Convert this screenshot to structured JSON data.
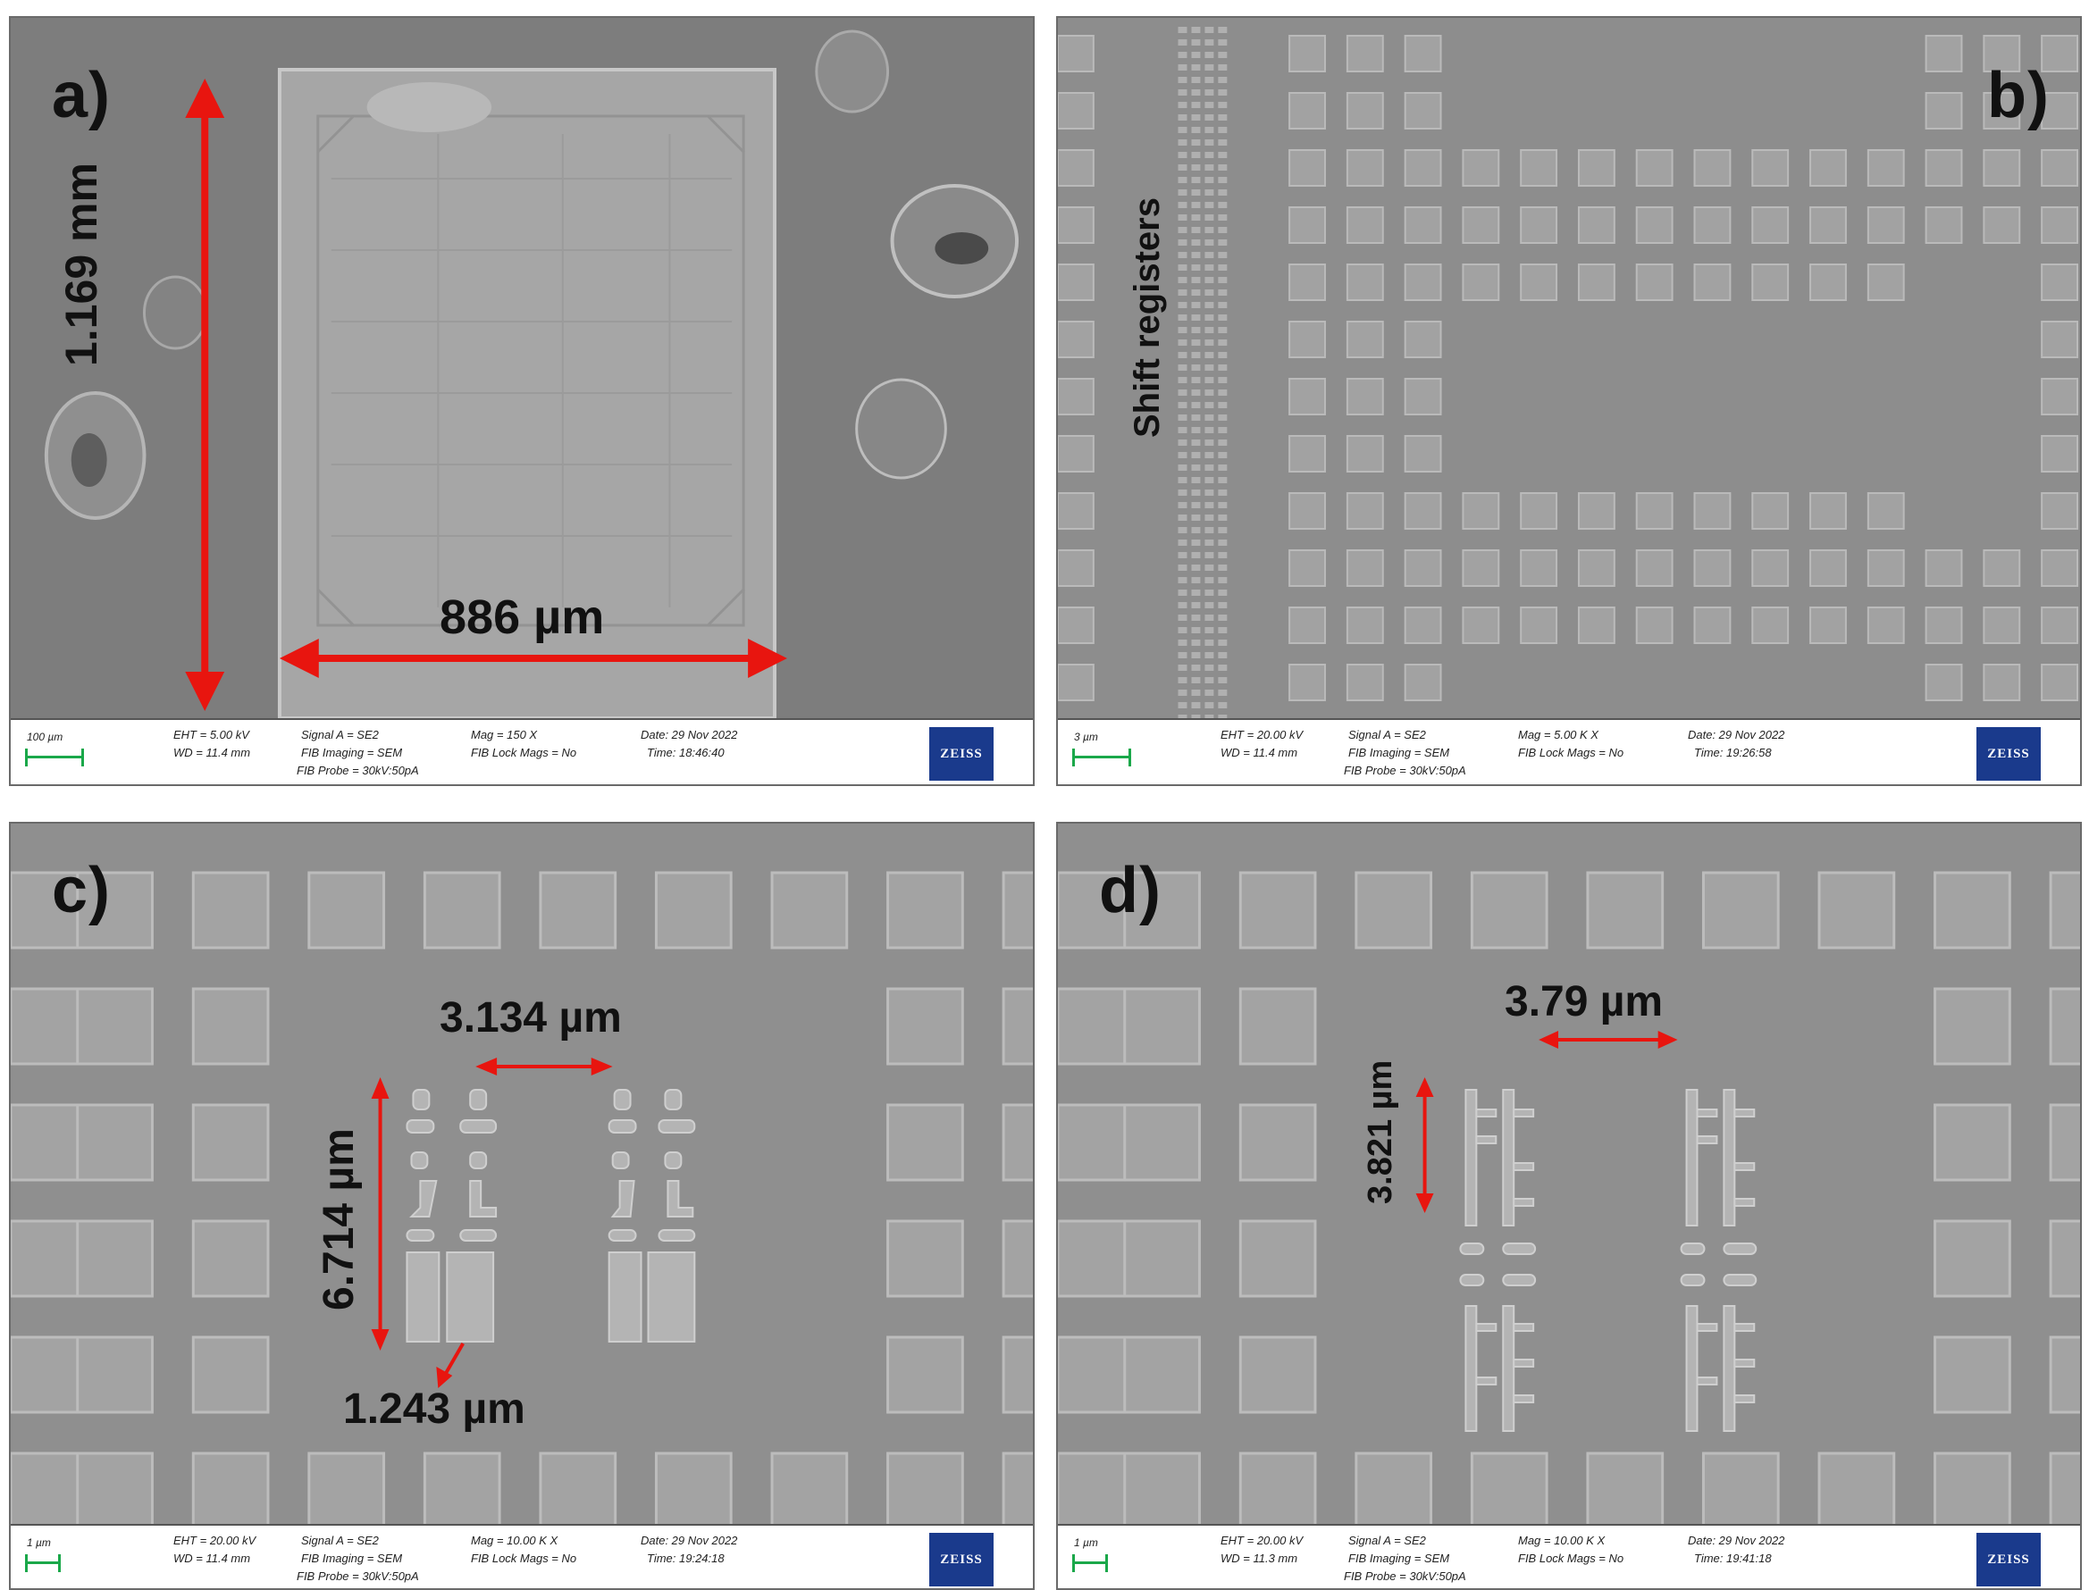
{
  "panels": [
    {
      "id": "a",
      "label": "a)",
      "measurements": [
        "1.169 mm",
        "886 µm"
      ],
      "info": {
        "scale": "100 µm",
        "eht": "EHT =  5.00 kV",
        "wd": "WD = 11.4 mm",
        "signal": "Signal A = SE2",
        "fib_imaging": "FIB Imaging = SEM",
        "fib_probe": "FIB Probe = 30kV:50pA",
        "mag": "Mag =     150 X",
        "fib_lock": "FIB Lock Mags = No",
        "date": "Date: 29 Nov 2022",
        "time": "Time: 18:46:40",
        "logo": "ZEISS"
      }
    },
    {
      "id": "b",
      "label": "b)",
      "measurements": [
        "Shift registers"
      ],
      "info": {
        "scale": "3 µm",
        "eht": "EHT = 20.00 kV",
        "wd": "WD = 11.4 mm",
        "signal": "Signal A = SE2",
        "fib_imaging": "FIB Imaging = SEM",
        "fib_probe": "FIB Probe = 30kV:50pA",
        "mag": "Mag =     5.00 K X",
        "fib_lock": "FIB Lock Mags = No",
        "date": "Date: 29 Nov 2022",
        "time": "Time: 19:26:58",
        "logo": "ZEISS"
      }
    },
    {
      "id": "c",
      "label": "c)",
      "measurements": [
        "3.134 µm",
        "6.714 µm",
        "1.243 µm"
      ],
      "info": {
        "scale": "1 µm",
        "eht": "EHT = 20.00 kV",
        "wd": "WD = 11.4 mm",
        "signal": "Signal A = SE2",
        "fib_imaging": "FIB Imaging = SEM",
        "fib_probe": "FIB Probe = 30kV:50pA",
        "mag": "Mag =     10.00 K X",
        "fib_lock": "FIB Lock Mags = No",
        "date": "Date: 29 Nov 2022",
        "time": "Time: 19:24:18",
        "logo": "ZEISS"
      }
    },
    {
      "id": "d",
      "label": "d)",
      "measurements": [
        "3.79 µm",
        "3.821 µm"
      ],
      "info": {
        "scale": "1 µm",
        "eht": "EHT = 20.00 kV",
        "wd": "WD = 11.3 mm",
        "signal": "Signal A = SE2",
        "fib_imaging": "FIB Imaging = SEM",
        "fib_probe": "FIB Probe = 30kV:50pA",
        "mag": "Mag =     10.00 K X",
        "fib_lock": "FIB Lock Mags = No",
        "date": "Date: 29 Nov 2022",
        "time": "Time: 19:41:18",
        "logo": "ZEISS"
      }
    }
  ],
  "colors": {
    "arrow": "#e8150f",
    "scalebar": "#1aa84a",
    "background": "#8b8b8b",
    "pad": "#a9a9a9",
    "logo": "#1a3a8c"
  }
}
